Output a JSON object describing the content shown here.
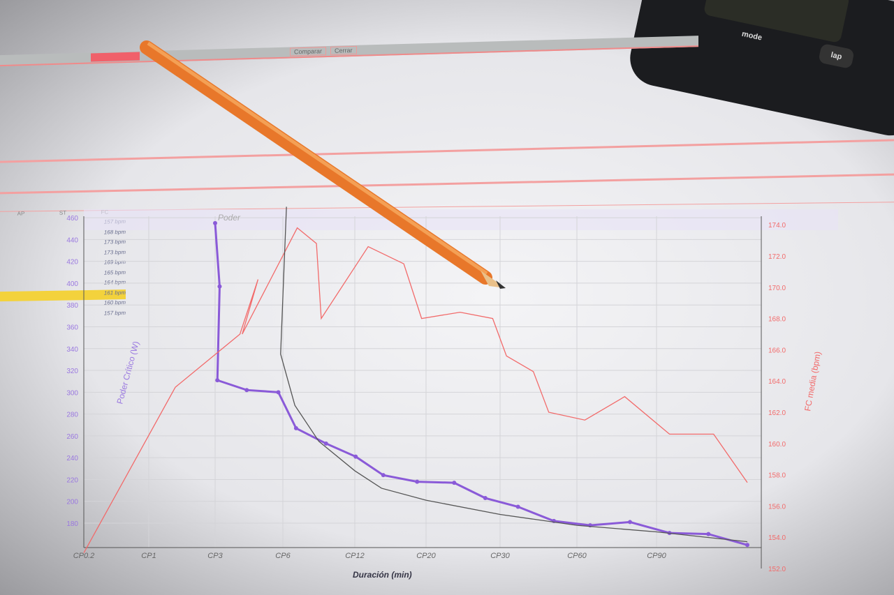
{
  "app": {
    "tabs": [
      "Comparar",
      "Cerrar"
    ],
    "device_buttons": {
      "mode": "mode",
      "lap": "lap"
    }
  },
  "side_table": {
    "headers": [
      "AP",
      "ST",
      "FC"
    ],
    "rows": [
      {
        "fc": "157 bpm",
        "highlight": false
      },
      {
        "fc": "168 bpm",
        "highlight": false
      },
      {
        "fc": "173 bpm",
        "highlight": false
      },
      {
        "fc": "173 bpm",
        "highlight": false
      },
      {
        "fc": "169 bpm",
        "highlight": false
      },
      {
        "fc": "165 bpm",
        "highlight": false
      },
      {
        "fc": "164 bpm",
        "highlight": false
      },
      {
        "fc": "161 bpm",
        "highlight": true
      },
      {
        "fc": "160 bpm",
        "highlight": false
      },
      {
        "fc": "157 bpm",
        "highlight": false
      }
    ]
  },
  "chart_data": {
    "type": "line",
    "legend": "Poder",
    "xlabel": "Duración (min)",
    "ylabel": "Poder Crítico (W)",
    "y2label": "FC media (bpm)",
    "x_ticks": [
      "CP0.2",
      "CP1",
      "CP3",
      "CP6",
      "CP12",
      "CP20",
      "CP30",
      "CP60",
      "CP90"
    ],
    "x_tick_values": [
      0.2,
      1,
      3,
      6,
      12,
      20,
      30,
      60,
      90
    ],
    "y_ticks": [
      180,
      200,
      220,
      240,
      260,
      280,
      300,
      320,
      340,
      360,
      380,
      400,
      420,
      440,
      460
    ],
    "ylim": [
      160,
      460
    ],
    "y2_ticks": [
      "152.0",
      "154.0",
      "156.0",
      "158.0",
      "160.0",
      "162.0",
      "164.0",
      "166.0",
      "168.0",
      "170.0",
      "172.0",
      "174.0"
    ],
    "y2lim": [
      152,
      174
    ],
    "grid": true,
    "colors": {
      "power": "#8a5ad8",
      "hr": "#f26a6a",
      "model": "#555555"
    },
    "series": [
      {
        "name": "Poder",
        "axis": "left",
        "color": "#8a5ad8",
        "x": [
          3,
          3.2,
          3.1,
          4.4,
          5.8,
          7.1,
          9.6,
          12.1,
          15.2,
          19,
          23.8,
          28,
          37,
          51,
          65,
          80,
          95,
          110,
          125
        ],
        "y": [
          455,
          397,
          311,
          302,
          300,
          267,
          253,
          241,
          224,
          218,
          217,
          203,
          195,
          182,
          178,
          181,
          171,
          170,
          160
        ]
      },
      {
        "axis": "right",
        "color": "#f26a6a",
        "x": [
          0.2,
          1.8,
          4.1,
          4.9,
          4.2,
          7.2,
          8.8,
          9.2,
          13.5,
          17.5,
          19.5,
          24.6,
          29,
          32.5,
          43,
          49,
          63,
          78,
          95,
          112,
          125
        ],
        "y": [
          153,
          163.6,
          167,
          170.5,
          167,
          173.8,
          172.8,
          168,
          172.6,
          171.5,
          168,
          168.4,
          168,
          165.6,
          164.6,
          162,
          161.5,
          163,
          160.6,
          160.6,
          157.5
        ]
      },
      {
        "axis": "left",
        "color": "#555555",
        "x": [
          6.3,
          5.9,
          7,
          9,
          12,
          15,
          20,
          30,
          60,
          90,
          125
        ],
        "y": [
          470,
          335,
          288,
          255,
          228,
          212,
          201,
          188,
          178,
          172,
          163
        ]
      }
    ]
  }
}
